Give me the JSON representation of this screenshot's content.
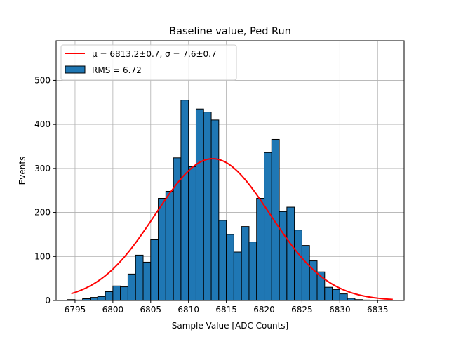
{
  "chart_data": {
    "type": "bar",
    "title": "Baseline value, Ped Run",
    "xlabel": "Sample Value [ADC Counts]",
    "ylabel": "Events",
    "xlim": [
      6792.5,
      6838.5
    ],
    "ylim": [
      0,
      590
    ],
    "xticks": [
      6795,
      6800,
      6805,
      6810,
      6815,
      6820,
      6825,
      6830,
      6835
    ],
    "yticks": [
      0,
      100,
      200,
      300,
      400,
      500
    ],
    "grid": true,
    "legend_position": "top-left",
    "histogram": {
      "name": "RMS = 6.72",
      "color": "#1f77b4",
      "edgecolor": "#000000",
      "bin_width": 1,
      "bin_lefts": [
        6794,
        6795,
        6796,
        6797,
        6798,
        6799,
        6800,
        6801,
        6802,
        6803,
        6804,
        6805,
        6806,
        6807,
        6808,
        6809,
        6810,
        6811,
        6812,
        6813,
        6814,
        6815,
        6816,
        6817,
        6818,
        6819,
        6820,
        6821,
        6822,
        6823,
        6824,
        6825,
        6826,
        6827,
        6828,
        6829,
        6830,
        6831,
        6832,
        6833,
        6834
      ],
      "counts": [
        2,
        1,
        4,
        7,
        9,
        20,
        33,
        31,
        60,
        103,
        87,
        138,
        232,
        248,
        324,
        455,
        304,
        435,
        428,
        410,
        182,
        150,
        110,
        168,
        133,
        232,
        336,
        366,
        202,
        212,
        160,
        125,
        90,
        65,
        30,
        25,
        15,
        5,
        2,
        1,
        0
      ]
    },
    "fit": {
      "name": "μ = 6813.2±0.7, σ = 7.6±0.7",
      "color": "#ff0000",
      "mu": 6813.2,
      "sigma": 7.6,
      "amplitude": 322,
      "x_range": [
        6794.5,
        6837
      ]
    }
  }
}
